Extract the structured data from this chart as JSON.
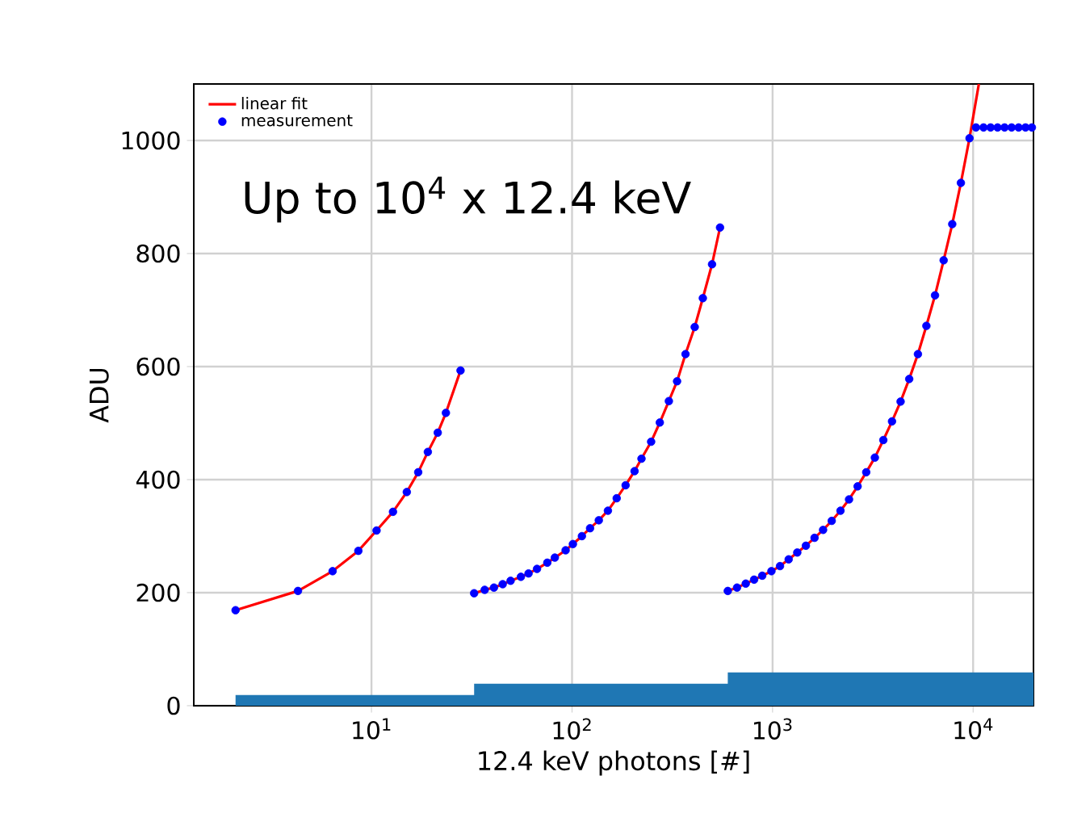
{
  "chart_data": {
    "type": "scatter",
    "xlabel": "12.4 keV photons [#]",
    "ylabel": "ADU",
    "annotations": [
      "Up to 10$^{4}$ x 12.4 keV"
    ],
    "log": "x",
    "grid": true,
    "legend": "top left",
    "xlim": [
      1.3,
      20000
    ],
    "ylim": [
      0,
      1100
    ],
    "xticks": [
      {
        "value": 10,
        "label": "10$^{1}$"
      },
      {
        "value": 100,
        "label": "10$^{2}$"
      },
      {
        "value": 1000,
        "label": "10$^{3}$"
      },
      {
        "value": 10000,
        "label": "10$^{4}$"
      }
    ],
    "yticks": [
      0,
      200,
      400,
      600,
      800,
      1000
    ],
    "series": [
      {
        "type": "area",
        "color": "#1f77b4",
        "x": [
          2.1,
          27.7,
          32.5,
          547,
          598,
          20000
        ],
        "values": [
          19,
          19,
          39,
          39,
          59,
          59
        ]
      },
      {
        "type": "line",
        "name": "linear fit",
        "color": "#ff0000",
        "marker": "none",
        "x": [
          2.1,
          4.3,
          6.4,
          8.6,
          10.6,
          12.8,
          15.0,
          17.1,
          19.1,
          21.4,
          23.5,
          27.8,
          30,
          32.5,
          36.7,
          40.8,
          45.1,
          49.4,
          55.6,
          60.7,
          66.9,
          75.3,
          82.1,
          92.9,
          101,
          112,
          123,
          136,
          151,
          167,
          185,
          205,
          222,
          248,
          274,
          304,
          334,
          368,
          409,
          449,
          499,
          547,
          570,
          598,
          665,
          735,
          809,
          888,
          987,
          1089,
          1203,
          1328,
          1466,
          1619,
          1786,
          1972,
          2181,
          2406,
          2655,
          2931,
          3236,
          3567,
          3941,
          4349,
          4801,
          5306,
          5848,
          6457,
          7129,
          7870,
          8690,
          9594,
          10680
        ],
        "values": [
          169,
          203,
          238,
          274,
          310,
          343,
          378,
          413,
          449,
          483,
          518,
          593,
          null,
          199,
          205,
          209,
          215,
          221,
          228,
          234,
          242,
          253,
          262,
          275,
          286,
          300,
          314,
          328,
          345,
          367,
          390,
          415,
          437,
          467,
          501,
          539,
          574,
          622,
          670,
          721,
          781,
          846,
          null,
          203,
          209,
          216,
          223,
          230,
          238,
          247,
          259,
          271,
          283,
          297,
          311,
          327,
          345,
          365,
          388,
          413,
          439,
          470,
          503,
          538,
          578,
          622,
          672,
          726,
          788,
          852,
          925,
          1004,
          1100
        ]
      },
      {
        "name": "measurement",
        "color": "#0000ff",
        "marker": "circle",
        "x": [
          2.1,
          4.3,
          6.4,
          8.6,
          10.6,
          12.8,
          15.0,
          17.1,
          19.1,
          21.4,
          23.5,
          27.8,
          32.5,
          36.7,
          40.8,
          45.1,
          49.4,
          55.6,
          60.7,
          66.9,
          75.3,
          82.1,
          92.9,
          101,
          112,
          123,
          136,
          151,
          167,
          185,
          205,
          222,
          248,
          274,
          304,
          334,
          368,
          409,
          449,
          499,
          547,
          598,
          665,
          735,
          809,
          888,
          987,
          1089,
          1203,
          1328,
          1466,
          1619,
          1786,
          1972,
          2181,
          2406,
          2655,
          2931,
          3236,
          3567,
          3941,
          4349,
          4801,
          5306,
          5848,
          6457,
          7129,
          7870,
          8690,
          9594,
          10330,
          11270,
          12220,
          13240,
          14350,
          15560,
          16860,
          18250,
          19640
        ],
        "values": [
          169,
          203,
          238,
          274,
          310,
          343,
          378,
          413,
          449,
          483,
          518,
          593,
          199,
          205,
          209,
          215,
          221,
          228,
          234,
          242,
          253,
          262,
          275,
          286,
          300,
          314,
          328,
          345,
          367,
          390,
          415,
          437,
          467,
          501,
          539,
          574,
          622,
          670,
          721,
          781,
          846,
          203,
          209,
          216,
          223,
          230,
          238,
          247,
          259,
          271,
          283,
          297,
          311,
          327,
          345,
          365,
          388,
          413,
          439,
          470,
          503,
          538,
          578,
          622,
          672,
          726,
          788,
          852,
          925,
          1004,
          1023,
          1023,
          1023,
          1023,
          1023,
          1023,
          1023,
          1023,
          1023
        ]
      }
    ]
  }
}
